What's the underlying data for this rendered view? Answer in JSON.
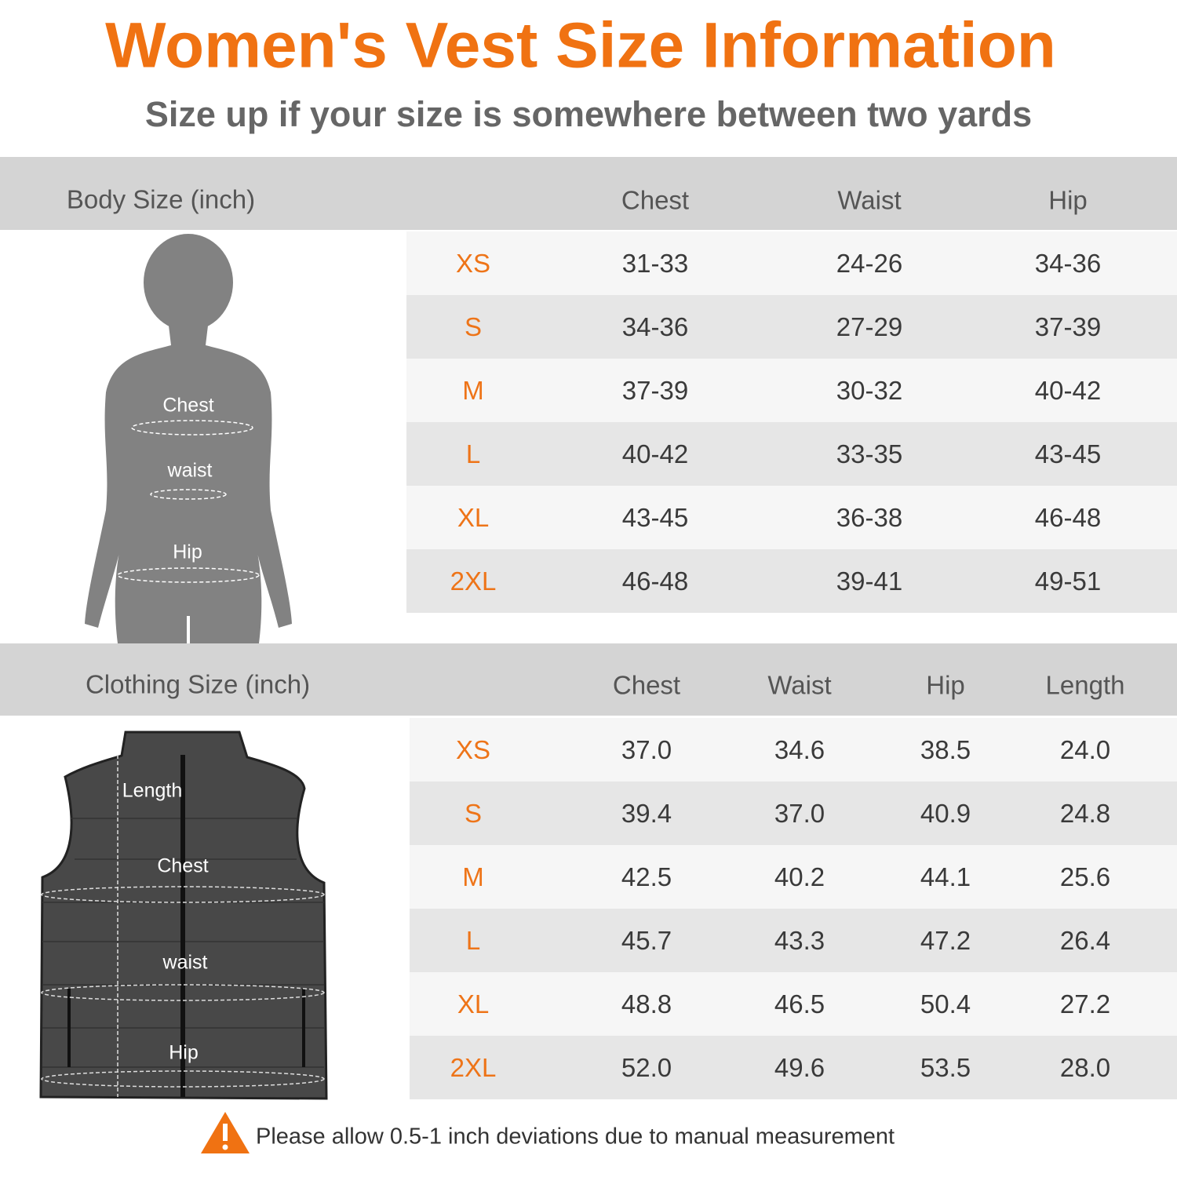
{
  "title": "Women's Vest Size Information",
  "subtitle": "Size up if your size is somewhere between two yards",
  "body_table": {
    "heading": "Body Size (inch)",
    "columns": [
      "Chest",
      "Waist",
      "Hip"
    ],
    "rows": [
      [
        "XS",
        "31-33",
        "24-26",
        "34-36"
      ],
      [
        "S",
        "34-36",
        "27-29",
        "37-39"
      ],
      [
        "M",
        "37-39",
        "30-32",
        "40-42"
      ],
      [
        "L",
        "40-42",
        "33-35",
        "43-45"
      ],
      [
        "XL",
        "43-45",
        "36-38",
        "46-48"
      ],
      [
        "2XL",
        "46-48",
        "39-41",
        "49-51"
      ]
    ],
    "figure_labels": [
      "Chest",
      "waist",
      "Hip"
    ]
  },
  "clothing_table": {
    "heading": "Clothing Size (inch)",
    "columns": [
      "Chest",
      "Waist",
      "Hip",
      "Length"
    ],
    "rows": [
      [
        "XS",
        "37.0",
        "34.6",
        "38.5",
        "24.0"
      ],
      [
        "S",
        "39.4",
        "37.0",
        "40.9",
        "24.8"
      ],
      [
        "M",
        "42.5",
        "40.2",
        "44.1",
        "25.6"
      ],
      [
        "L",
        "45.7",
        "43.3",
        "47.2",
        "26.4"
      ],
      [
        "XL",
        "48.8",
        "46.5",
        "50.4",
        "27.2"
      ],
      [
        "2XL",
        "52.0",
        "49.6",
        "53.5",
        "28.0"
      ]
    ],
    "figure_labels": [
      "Length",
      "Chest",
      "waist",
      "Hip"
    ]
  },
  "note": "Please allow 0.5-1 inch deviations due to manual measurement"
}
